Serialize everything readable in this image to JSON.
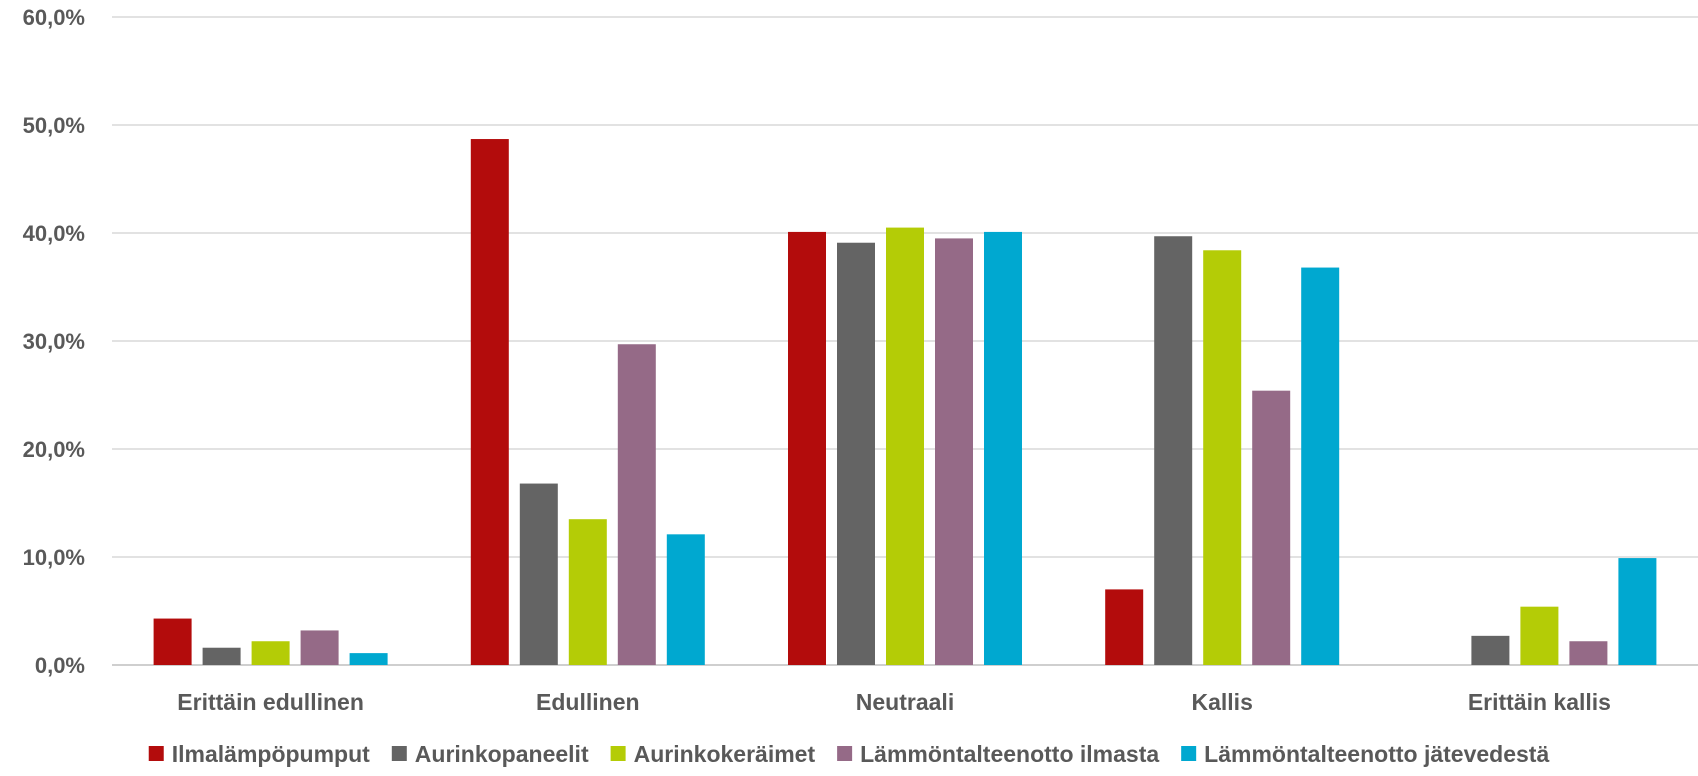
{
  "chart_data": {
    "type": "bar",
    "title": "",
    "xlabel": "",
    "ylabel": "",
    "ylim": [
      0,
      60
    ],
    "yticks": [
      "0,0%",
      "10,0%",
      "20,0%",
      "30,0%",
      "40,0%",
      "50,0%",
      "60,0%"
    ],
    "grid": true,
    "legend_position": "bottom",
    "categories": [
      "Erittäin edullinen",
      "Edullinen",
      "Neutraali",
      "Kallis",
      "Erittäin kallis"
    ],
    "series": [
      {
        "name": "Ilmalämpöpumput",
        "color": "#b30c0c",
        "values": [
          4.3,
          48.7,
          40.1,
          7.0,
          0.0
        ]
      },
      {
        "name": "Aurinkopaneelit",
        "color": "#646464",
        "values": [
          1.6,
          16.8,
          39.1,
          39.7,
          2.7
        ]
      },
      {
        "name": "Aurinkokeräimet",
        "color": "#b4cc06",
        "values": [
          2.2,
          13.5,
          40.5,
          38.4,
          5.4
        ]
      },
      {
        "name": "Lämmöntalteenotto ilmasta",
        "color": "#956a87",
        "values": [
          3.2,
          29.7,
          39.5,
          25.4,
          2.2
        ]
      },
      {
        "name": "Lämmöntalteenotto jätevedestä",
        "color": "#00a8d0",
        "values": [
          1.1,
          12.1,
          40.1,
          36.8,
          9.9
        ]
      }
    ]
  }
}
